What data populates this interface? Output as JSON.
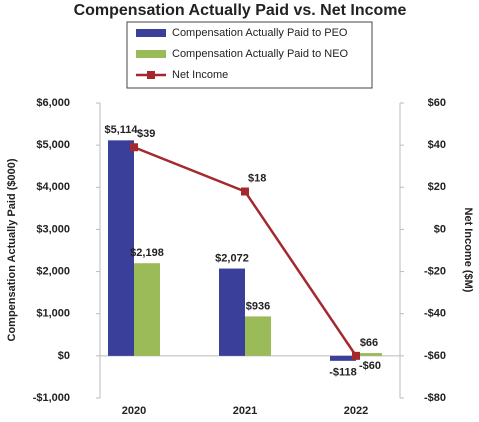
{
  "chart_data": {
    "type": "bar",
    "title": "Compensation Actually Paid vs. Net Income",
    "categories": [
      "2020",
      "2021",
      "2022"
    ],
    "series": [
      {
        "name": "Compensation Actually Paid to PEO",
        "color": "#3a3f9a",
        "values": [
          5114,
          2072,
          -118
        ],
        "value_labels": [
          "$5,114",
          "$2,072",
          "-$118"
        ]
      },
      {
        "name": "Compensation Actually Paid to NEO",
        "color": "#9bbb59",
        "values": [
          2198,
          936,
          66
        ],
        "value_labels": [
          "$2,198",
          "$936",
          "$66"
        ]
      },
      {
        "name": "Net Income",
        "color": "#a5282f",
        "type": "line",
        "axis": "y2",
        "values": [
          39,
          18,
          -60
        ],
        "value_labels": [
          "$39",
          "$18",
          "-$60"
        ]
      }
    ],
    "y_label": "Compensation Actually Paid ($000)",
    "y2_label": "Net Income ($M)",
    "ylim": [
      -1000,
      6000
    ],
    "yticks": [
      {
        "value": -1000,
        "label": "-$1,000"
      },
      {
        "value": 0,
        "label": "$0"
      },
      {
        "value": 1000,
        "label": "$1,000"
      },
      {
        "value": 2000,
        "label": "$2,000"
      },
      {
        "value": 3000,
        "label": "$3,000"
      },
      {
        "value": 4000,
        "label": "$4,000"
      },
      {
        "value": 5000,
        "label": "$5,000"
      },
      {
        "value": 6000,
        "label": "$6,000"
      }
    ],
    "y2lim": [
      -80,
      60
    ],
    "y2ticks": [
      {
        "value": -80,
        "label": "-$80"
      },
      {
        "value": -60,
        "label": "-$60"
      },
      {
        "value": -40,
        "label": "-$40"
      },
      {
        "value": -20,
        "label": "-$20"
      },
      {
        "value": 0,
        "label": "$0"
      },
      {
        "value": 20,
        "label": "$20"
      },
      {
        "value": 40,
        "label": "$40"
      },
      {
        "value": 60,
        "label": "$60"
      }
    ],
    "grid": false
  }
}
